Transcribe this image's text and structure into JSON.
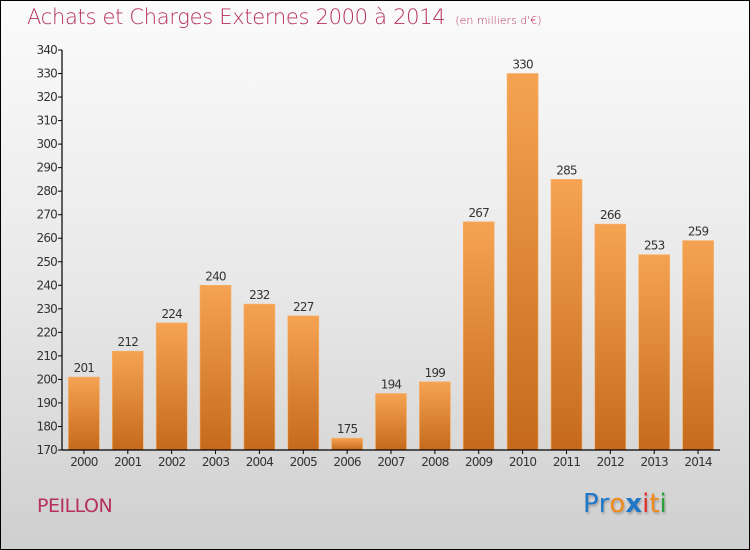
{
  "chart_data": {
    "type": "bar",
    "title": "Achats et Charges Externes 2000 à 2014",
    "subtitle": "(en milliers d'€)",
    "xlabel": "",
    "ylabel": "",
    "categories": [
      "2000",
      "2001",
      "2002",
      "2003",
      "2004",
      "2005",
      "2006",
      "2007",
      "2008",
      "2009",
      "2010",
      "2011",
      "2012",
      "2013",
      "2014"
    ],
    "values": [
      201,
      212,
      224,
      240,
      232,
      227,
      175,
      194,
      199,
      267,
      330,
      285,
      266,
      253,
      259
    ],
    "ylim": [
      170,
      340
    ],
    "yticks": [
      170,
      180,
      190,
      200,
      210,
      220,
      230,
      240,
      250,
      260,
      270,
      280,
      290,
      300,
      310,
      320,
      330,
      340
    ],
    "grid": false,
    "legend": "none",
    "data_labels": true,
    "colors": {
      "bar_top": "#f5a352",
      "bar_bottom": "#c56a1c",
      "title": "#b5305f"
    }
  },
  "footer": {
    "commune": "PEILLON",
    "logo": {
      "letters": [
        {
          "char": "P",
          "color": "#1f77c9"
        },
        {
          "char": "r",
          "color": "#1f77c9"
        },
        {
          "char": "o",
          "color": "#f08a1a"
        },
        {
          "char": "x",
          "color": "#1f77c9"
        },
        {
          "char": "i",
          "color": "#e0302a"
        },
        {
          "char": "t",
          "color": "#f08a1a"
        },
        {
          "char": "i",
          "color": "#2aa13a"
        }
      ]
    }
  }
}
